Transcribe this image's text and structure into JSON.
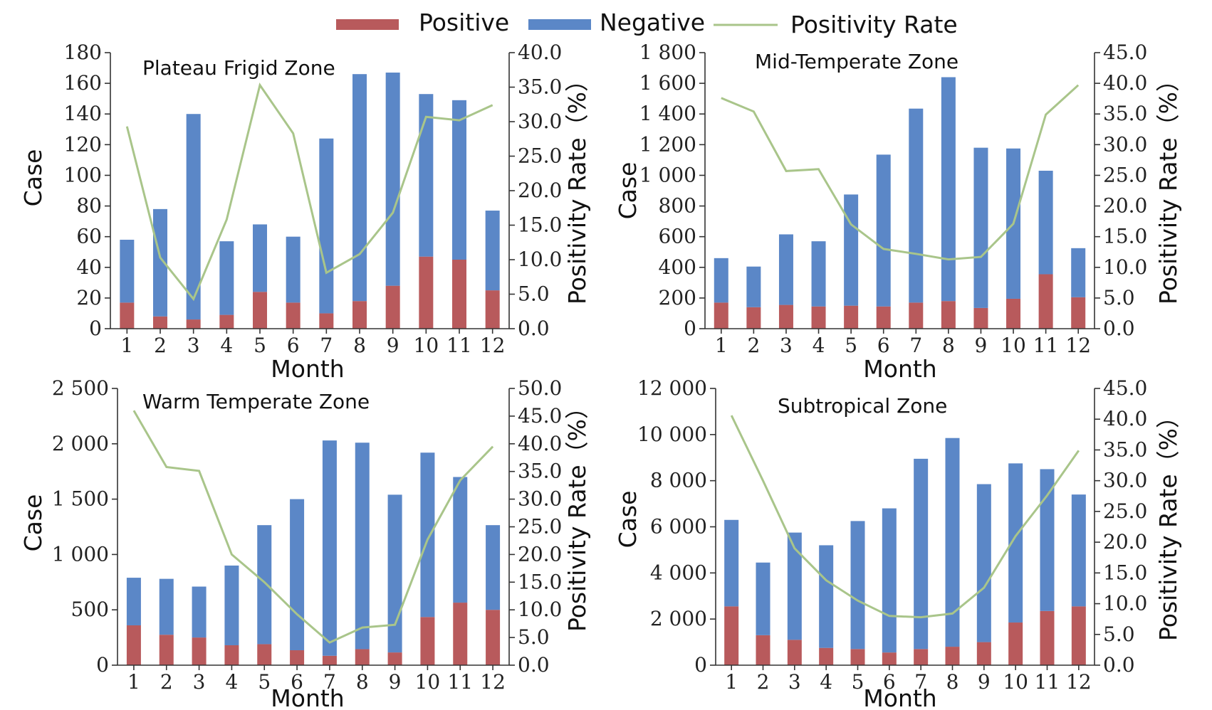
{
  "colors": {
    "positive": "#b85a5c",
    "negative": "#5b87c7",
    "rate": "#a9c58a"
  },
  "legend": {
    "positive": "Positive",
    "negative": "Negative",
    "rate": "Positivity Rate"
  },
  "chart_data": [
    {
      "type": "bar",
      "title": "Plateau Frigid Zone",
      "xlabel": "Month",
      "ylabel": "Case",
      "y2label": "Positivity Rate（%）",
      "categories": [
        "1",
        "2",
        "3",
        "4",
        "5",
        "6",
        "7",
        "8",
        "9",
        "10",
        "11",
        "12"
      ],
      "ylim": [
        0,
        180
      ],
      "yticks": [
        0,
        20,
        40,
        60,
        80,
        100,
        120,
        140,
        160,
        180
      ],
      "ytick_labels": [
        "0",
        "20",
        "40",
        "60",
        "80",
        "100",
        "120",
        "140",
        "160",
        "180"
      ],
      "y2lim": [
        0,
        40
      ],
      "y2ticks": [
        0,
        5,
        10,
        15,
        20,
        25,
        30,
        35,
        40
      ],
      "y2tick_labels": [
        "0.0",
        "5.0",
        "10.0",
        "15.0",
        "20.0",
        "25.0",
        "30.0",
        "35.0",
        "40.0"
      ],
      "series": [
        {
          "name": "Positive",
          "kind": "stacked-bar",
          "values": [
            17,
            8,
            6,
            9,
            24,
            17,
            10,
            18,
            28,
            47,
            45,
            25
          ]
        },
        {
          "name": "Negative",
          "kind": "stacked-bar",
          "values": [
            41,
            70,
            134,
            48,
            44,
            43,
            114,
            148,
            139,
            106,
            104,
            52
          ]
        },
        {
          "name": "Positivity Rate",
          "kind": "line",
          "axis": "right",
          "values": [
            29.3,
            10.3,
            4.3,
            15.8,
            35.3,
            28.3,
            8.1,
            10.8,
            16.8,
            30.7,
            30.2,
            32.4
          ]
        }
      ]
    },
    {
      "type": "bar",
      "title": "Mid-Temperate Zone",
      "xlabel": "Month",
      "ylabel": "Case",
      "y2label": "Positivity Rate（%）",
      "categories": [
        "1",
        "2",
        "3",
        "4",
        "5",
        "6",
        "7",
        "8",
        "9",
        "10",
        "11",
        "12"
      ],
      "ylim": [
        0,
        1800
      ],
      "yticks": [
        0,
        200,
        400,
        600,
        800,
        1000,
        1200,
        1400,
        1600,
        1800
      ],
      "ytick_labels": [
        "0",
        "200",
        "400",
        "600",
        "800",
        "1 000",
        "1 200",
        "1 400",
        "1 600",
        "1 800"
      ],
      "y2lim": [
        0,
        45
      ],
      "y2ticks": [
        0,
        5,
        10,
        15,
        20,
        25,
        30,
        35,
        40,
        45
      ],
      "y2tick_labels": [
        "0.0",
        "5.0",
        "10.0",
        "15.0",
        "20.0",
        "25.0",
        "30.0",
        "35.0",
        "40.0",
        "45.0"
      ],
      "series": [
        {
          "name": "Positive",
          "kind": "stacked-bar",
          "values": [
            170,
            140,
            155,
            145,
            150,
            145,
            170,
            180,
            135,
            195,
            355,
            205
          ]
        },
        {
          "name": "Negative",
          "kind": "stacked-bar",
          "values": [
            290,
            265,
            460,
            425,
            725,
            990,
            1265,
            1460,
            1045,
            980,
            675,
            320
          ]
        },
        {
          "name": "Positivity Rate",
          "kind": "line",
          "axis": "right",
          "values": [
            37.6,
            35.4,
            25.7,
            26.0,
            17.0,
            13.0,
            12.2,
            11.3,
            11.7,
            17.1,
            34.9,
            39.7
          ]
        }
      ]
    },
    {
      "type": "bar",
      "title": "Warm Temperate Zone",
      "xlabel": "Month",
      "ylabel": "Case",
      "y2label": "Positivity Rate（%）",
      "categories": [
        "1",
        "2",
        "3",
        "4",
        "5",
        "6",
        "7",
        "8",
        "9",
        "10",
        "11",
        "12"
      ],
      "ylim": [
        0,
        2500
      ],
      "yticks": [
        0,
        500,
        1000,
        1500,
        2000,
        2500
      ],
      "ytick_labels": [
        "0",
        "500",
        "1 000",
        "1 500",
        "2 000",
        "2 500"
      ],
      "y2lim": [
        0,
        50
      ],
      "y2ticks": [
        0,
        5,
        10,
        15,
        20,
        25,
        30,
        35,
        40,
        45,
        50
      ],
      "y2tick_labels": [
        "0.0",
        "5.0",
        "10.0",
        "15.0",
        "20.0",
        "25.0",
        "30.0",
        "35.0",
        "40.0",
        "45.0",
        "50.0"
      ],
      "series": [
        {
          "name": "Positive",
          "kind": "stacked-bar",
          "values": [
            360,
            275,
            250,
            180,
            190,
            135,
            85,
            145,
            115,
            435,
            565,
            500
          ]
        },
        {
          "name": "Negative",
          "kind": "stacked-bar",
          "values": [
            430,
            505,
            460,
            720,
            1075,
            1365,
            1945,
            1865,
            1425,
            1485,
            1135,
            765
          ]
        },
        {
          "name": "Positivity Rate",
          "kind": "line",
          "axis": "right",
          "values": [
            46.0,
            35.8,
            35.1,
            20.0,
            15.0,
            9.2,
            4.1,
            6.8,
            7.3,
            22.7,
            33.4,
            39.5
          ]
        }
      ]
    },
    {
      "type": "bar",
      "title": "Subtropical Zone",
      "xlabel": "Month",
      "ylabel": "Case",
      "y2label": "Positivity Rate（%）",
      "categories": [
        "1",
        "2",
        "3",
        "4",
        "5",
        "6",
        "7",
        "8",
        "9",
        "10",
        "11",
        "12"
      ],
      "ylim": [
        0,
        12000
      ],
      "yticks": [
        0,
        2000,
        4000,
        6000,
        8000,
        10000,
        12000
      ],
      "ytick_labels": [
        "0",
        "2 000",
        "4 000",
        "6 000",
        "8 000",
        "10 000",
        "12 000"
      ],
      "y2lim": [
        0,
        45
      ],
      "y2ticks": [
        0,
        5,
        10,
        15,
        20,
        25,
        30,
        35,
        40,
        45
      ],
      "y2tick_labels": [
        "0.0",
        "5.0",
        "10.0",
        "15.0",
        "20.0",
        "25.0",
        "30.0",
        "35.0",
        "40.0",
        "45.0"
      ],
      "series": [
        {
          "name": "Positive",
          "kind": "stacked-bar",
          "values": [
            2550,
            1300,
            1100,
            750,
            700,
            550,
            700,
            800,
            1000,
            1850,
            2350,
            2550
          ]
        },
        {
          "name": "Negative",
          "kind": "stacked-bar",
          "values": [
            3750,
            3150,
            4650,
            4450,
            5550,
            6250,
            8250,
            9050,
            6850,
            6900,
            6150,
            4850
          ]
        },
        {
          "name": "Positivity Rate",
          "kind": "line",
          "axis": "right",
          "values": [
            40.6,
            30.0,
            19.0,
            13.8,
            10.5,
            8.0,
            7.8,
            8.4,
            12.6,
            21.0,
            27.6,
            34.9
          ]
        }
      ]
    }
  ]
}
